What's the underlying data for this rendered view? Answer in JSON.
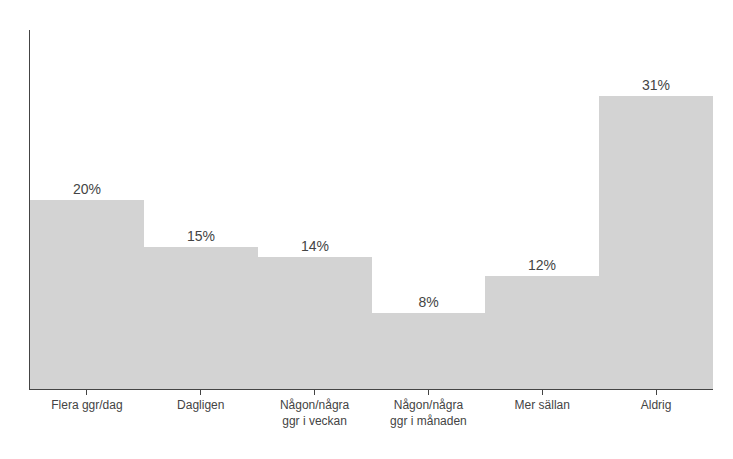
{
  "chart_data": {
    "type": "bar",
    "categories": [
      "Flera ggr/dag",
      "Dagligen",
      "Någon/några\nggr i veckan",
      "Någon/några\nggr i månaden",
      "Mer sällan",
      "Aldrig"
    ],
    "values": [
      20,
      15,
      14,
      8,
      12,
      31
    ],
    "value_labels": [
      "20%",
      "15%",
      "14%",
      "8%",
      "12%",
      "31%"
    ],
    "data_labels": true,
    "color": "#d3d3d3",
    "ylim": [
      0,
      38
    ],
    "grid": false,
    "tick_labels": "x"
  }
}
